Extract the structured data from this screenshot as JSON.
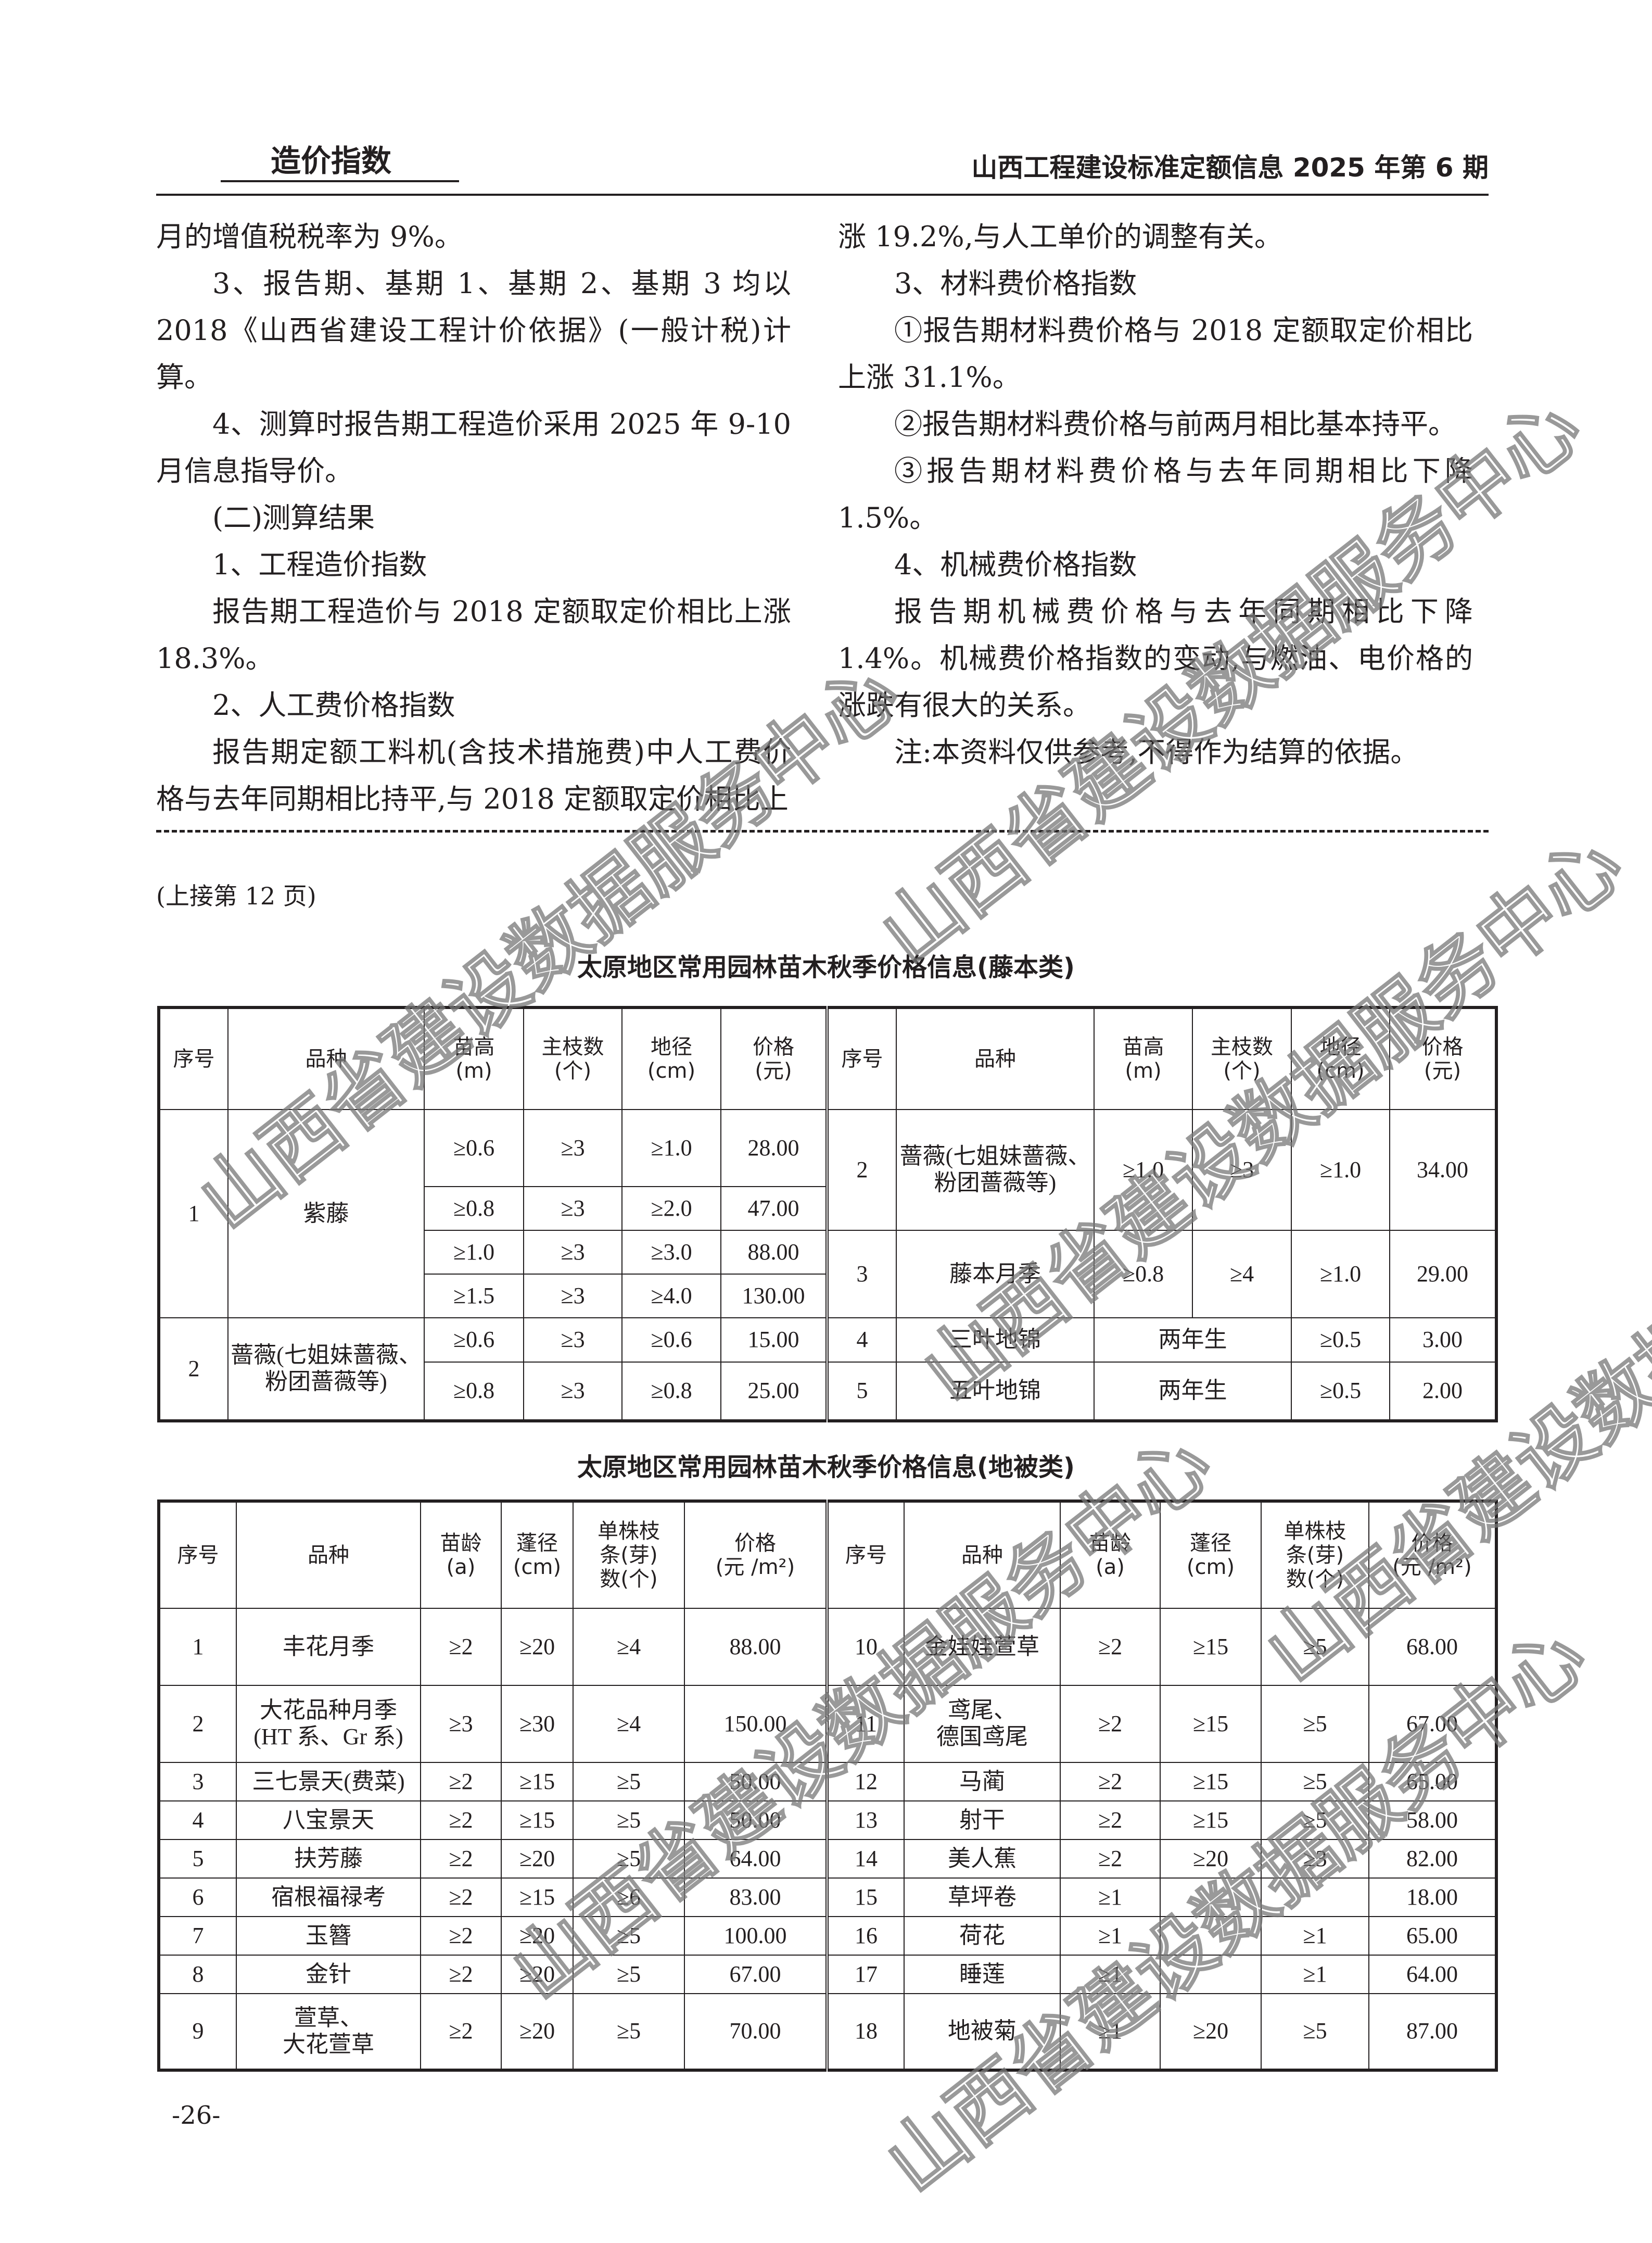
{
  "header": {
    "section": "造价指数",
    "publication": "山西工程建设标准定额信息 2025 年第 6 期"
  },
  "left_column": [
    {
      "text": "月的增值税税率为 9%。",
      "indent": false
    },
    {
      "text": "3、报告期、基期 1、基期 2、基期 3 均以 2018《山西省建设工程计价依据》(一般计税)计算。",
      "indent": true
    },
    {
      "text": "4、测算时报告期工程造价采用 2025 年 9-10 月信息指导价。",
      "indent": true
    },
    {
      "text": "(二)测算结果",
      "indent": true
    },
    {
      "text": "1、工程造价指数",
      "indent": true
    },
    {
      "text": "报告期工程造价与 2018 定额取定价相比上涨 18.3%。",
      "indent": true
    },
    {
      "text": "2、人工费价格指数",
      "indent": true
    },
    {
      "text": "报告期定额工料机(含技术措施费)中人工费价格与去年同期相比持平,与 2018 定额取定价相比上",
      "indent": true
    }
  ],
  "right_column": [
    {
      "text": "涨 19.2%,与人工单价的调整有关。",
      "indent": false
    },
    {
      "text": "3、材料费价格指数",
      "indent": true
    },
    {
      "text": "①报告期材料费价格与 2018 定额取定价相比上涨 31.1%。",
      "indent": true
    },
    {
      "text": "②报告期材料费价格与前两月相比基本持平。",
      "indent": true
    },
    {
      "text": "③报告期材料费价格与去年同期相比下降 1.5%。",
      "indent": true
    },
    {
      "text": "4、机械费价格指数",
      "indent": true
    },
    {
      "text": "报告期机械费价格与去年同期相比下降 1.4%。机械费价格指数的变动,与燃油、电价格的涨跌有很大的关系。",
      "indent": true
    },
    {
      "text": "注:本资料仅供参考,不得作为结算的依据。",
      "indent": true
    }
  ],
  "continued": "(上接第 12 页)",
  "table1": {
    "title": "太原地区常用园林苗木秋季价格信息(藤本类)",
    "headers": [
      "序号",
      "品种",
      "苗高\n(m)",
      "主枝数\n(个)",
      "地径\n(cm)",
      "价格\n(元)"
    ],
    "left": [
      {
        "no": "1",
        "name": "紫藤",
        "rows": [
          [
            "≥0.6",
            "≥3",
            "≥1.0",
            "28.00"
          ],
          [
            "≥0.8",
            "≥3",
            "≥2.0",
            "47.00"
          ],
          [
            "≥1.0",
            "≥3",
            "≥3.0",
            "88.00"
          ],
          [
            "≥1.5",
            "≥3",
            "≥4.0",
            "130.00"
          ]
        ]
      },
      {
        "no": "2",
        "name": "蔷薇(七姐妹蔷薇、粉团蔷薇等)",
        "rows": [
          [
            "≥0.6",
            "≥3",
            "≥0.6",
            "15.00"
          ],
          [
            "≥0.8",
            "≥3",
            "≥0.8",
            "25.00"
          ]
        ]
      }
    ],
    "right": [
      {
        "no": "2",
        "name": "蔷薇(七姐妹蔷薇、粉团蔷薇等)",
        "height": "≥1.0",
        "branches": "≥3",
        "diameter": "≥1.0",
        "price": "34.00"
      },
      {
        "no": "3",
        "name": "藤本月季",
        "height": "≥0.8",
        "branches": "≥4",
        "diameter": "≥1.0",
        "price": "29.00"
      },
      {
        "no": "4",
        "name": "三叶地锦",
        "height": "两年生",
        "branches": "",
        "diameter": "≥0.5",
        "price": "3.00"
      },
      {
        "no": "5",
        "name": "五叶地锦",
        "height": "两年生",
        "branches": "",
        "diameter": "≥0.5",
        "price": "2.00"
      }
    ]
  },
  "table2": {
    "title": "太原地区常用园林苗木秋季价格信息(地被类)",
    "headers": [
      "序号",
      "品种",
      "苗龄\n(a)",
      "蓬径\n(cm)",
      "单株枝\n条(芽)\n数(个)",
      "价格\n(元 /m²)"
    ],
    "left": [
      [
        "1",
        "丰花月季",
        "≥2",
        "≥20",
        "≥4",
        "88.00"
      ],
      [
        "2",
        "大花品种月季\n(HT 系、Gr 系)",
        "≥3",
        "≥30",
        "≥4",
        "150.00"
      ],
      [
        "3",
        "三七景天(费菜)",
        "≥2",
        "≥15",
        "≥5",
        "50.00"
      ],
      [
        "4",
        "八宝景天",
        "≥2",
        "≥15",
        "≥5",
        "50.00"
      ],
      [
        "5",
        "扶芳藤",
        "≥2",
        "≥20",
        "≥5",
        "64.00"
      ],
      [
        "6",
        "宿根福禄考",
        "≥2",
        "≥15",
        "≥6",
        "83.00"
      ],
      [
        "7",
        "玉簪",
        "≥2",
        "≥20",
        "≥5",
        "100.00"
      ],
      [
        "8",
        "金针",
        "≥2",
        "≥20",
        "≥5",
        "67.00"
      ],
      [
        "9",
        "萱草、\n大花萱草",
        "≥2",
        "≥20",
        "≥5",
        "70.00"
      ]
    ],
    "right": [
      [
        "10",
        "金娃娃萱草",
        "≥2",
        "≥15",
        "≥5",
        "68.00"
      ],
      [
        "11",
        "鸢尾、\n德国鸢尾",
        "≥2",
        "≥15",
        "≥5",
        "67.00"
      ],
      [
        "12",
        "马蔺",
        "≥2",
        "≥15",
        "≥5",
        "65.00"
      ],
      [
        "13",
        "射干",
        "≥2",
        "≥15",
        "≥5",
        "58.00"
      ],
      [
        "14",
        "美人蕉",
        "≥2",
        "≥20",
        "≥3",
        "82.00"
      ],
      [
        "15",
        "草坪卷",
        "≥1",
        "",
        "",
        "18.00"
      ],
      [
        "16",
        "荷花",
        "≥1",
        "",
        "≥1",
        "65.00"
      ],
      [
        "17",
        "睡莲",
        "≥1",
        "",
        "≥1",
        "64.00"
      ],
      [
        "18",
        "地被菊",
        "≥1",
        "≥20",
        "≥5",
        "87.00"
      ]
    ]
  },
  "page_number": "-26-",
  "watermark": "山西省建设数据服务中心"
}
